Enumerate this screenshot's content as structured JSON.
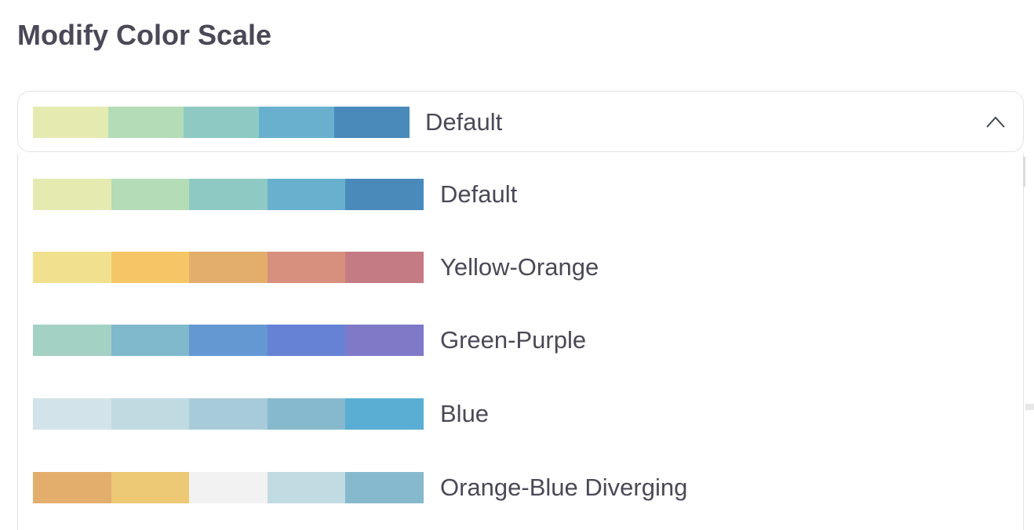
{
  "title": "Modify Color Scale",
  "select": {
    "selected_label": "Default",
    "selected_colors": [
      "#e5ebb0",
      "#b3dcb7",
      "#8ecac3",
      "#69b0cf",
      "#4a8abb"
    ],
    "chevron_icon": "chevron-up-icon",
    "expanded": true
  },
  "options": [
    {
      "label": "Default",
      "colors": [
        "#e5ebb0",
        "#b3dcb7",
        "#8ecac3",
        "#69b0cf",
        "#4a8abb"
      ]
    },
    {
      "label": "Yellow-Orange",
      "colors": [
        "#f1e18f",
        "#f5c665",
        "#e3ad6c",
        "#d78f7e",
        "#c57b84"
      ]
    },
    {
      "label": "Green-Purple",
      "colors": [
        "#a3d1c3",
        "#80b8cc",
        "#6498d3",
        "#6682d4",
        "#7f79c8"
      ]
    },
    {
      "label": "Blue",
      "colors": [
        "#d3e3ea",
        "#c0dae2",
        "#a8cbd9",
        "#87b9ce",
        "#5baed3"
      ]
    },
    {
      "label": "Orange-Blue Diverging",
      "colors": [
        "#e3ae6c",
        "#eec975",
        "#f2f2f2",
        "#c1dbe2",
        "#86b9ce"
      ]
    }
  ]
}
